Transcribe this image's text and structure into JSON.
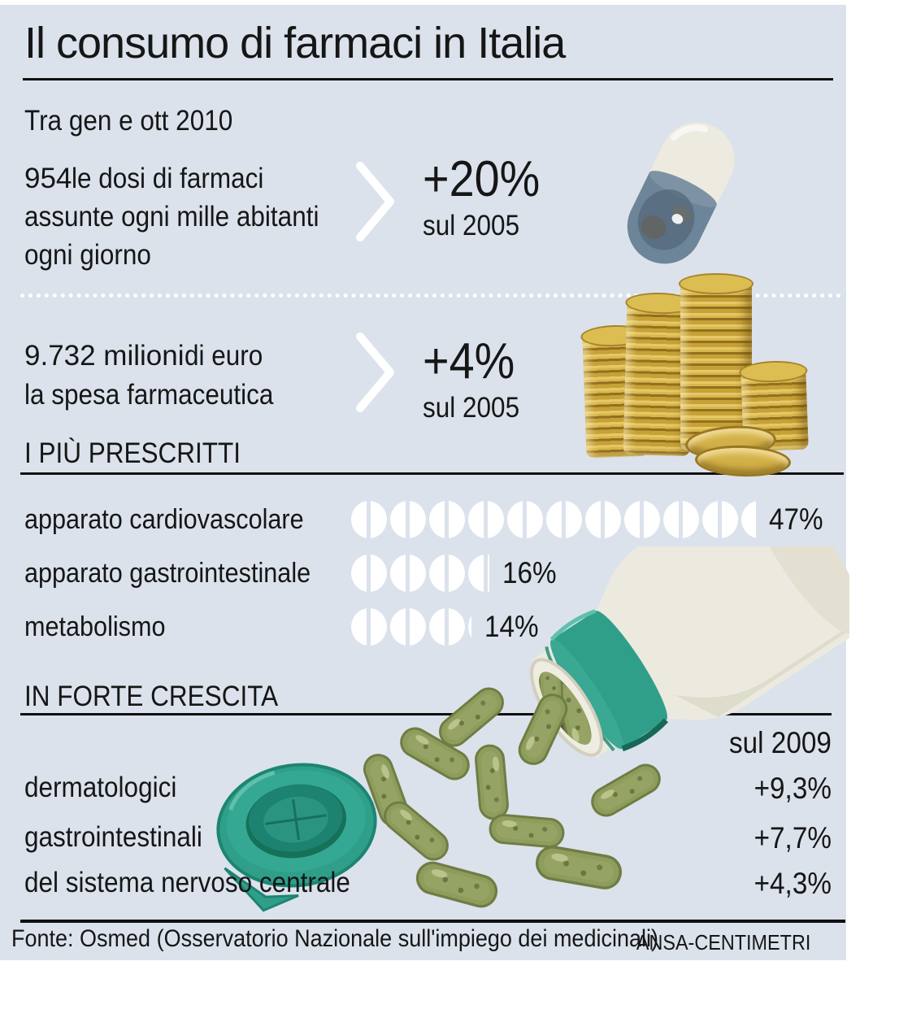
{
  "colors": {
    "panel_bg": "#dbe2ec",
    "text": "#161616",
    "pill_white": "#ffffff",
    "cap_teal": "#2f9f8a",
    "capsule_olive": "#8e9c5c",
    "coin_gold": "#c6a136"
  },
  "header": {
    "title": "Il consumo di farmaci in Italia"
  },
  "period_label": "Tra gen e ott 2010",
  "stats": [
    {
      "lead": "954",
      "line1_rest": " le dosi di farmaci",
      "line2": "assunte ogni mille abitanti",
      "line3": "ogni giorno",
      "delta": "+20%",
      "baseline": "sul 2005"
    },
    {
      "lead": "9.732 milioni",
      "line1_rest": " di euro",
      "line2": "la spesa farmaceutica",
      "delta": "+4%",
      "baseline": "sul 2005"
    }
  ],
  "prescritti_heading": "I PIÙ PRESCRITTI",
  "crescita_heading": "IN FORTE CRESCITA",
  "crescita_baseline": "sul 2009",
  "footer": {
    "source": "Fonte: Osmed (Osservatorio Nazionale sull'impiego dei medicinali)",
    "credit": "ANSA-CENTIMETRI"
  },
  "chart_data": [
    {
      "type": "bar",
      "variant": "pictogram-pills",
      "title": "I PIÙ PRESCRITTI",
      "categories": [
        "apparato cardiovascolare",
        "apparato gastrointestinale",
        "metabolismo"
      ],
      "values": [
        47,
        16,
        14
      ],
      "value_labels": [
        "47%",
        "16%",
        "14%"
      ],
      "unit": "%",
      "xlim": [
        0,
        50
      ],
      "legend_position": "none",
      "grid": false
    },
    {
      "type": "table",
      "title": "IN FORTE CRESCITA",
      "baseline_label": "sul 2009",
      "categories": [
        "dermatologici",
        "gastrointestinali",
        "del sistema nervoso centrale"
      ],
      "values": [
        9.3,
        7.7,
        4.3
      ],
      "value_labels": [
        "+9,3%",
        "+7,7%",
        "+4,3%"
      ]
    },
    {
      "type": "table",
      "variant": "kpi",
      "title": "Tra gen e ott 2010",
      "rows": [
        {
          "label": "954 le dosi di farmaci assunte ogni mille abitanti ogni giorno",
          "delta": "+20%",
          "baseline": "sul 2005"
        },
        {
          "label": "9.732 milioni di euro la spesa farmaceutica",
          "delta": "+4%",
          "baseline": "sul 2005"
        }
      ]
    }
  ]
}
